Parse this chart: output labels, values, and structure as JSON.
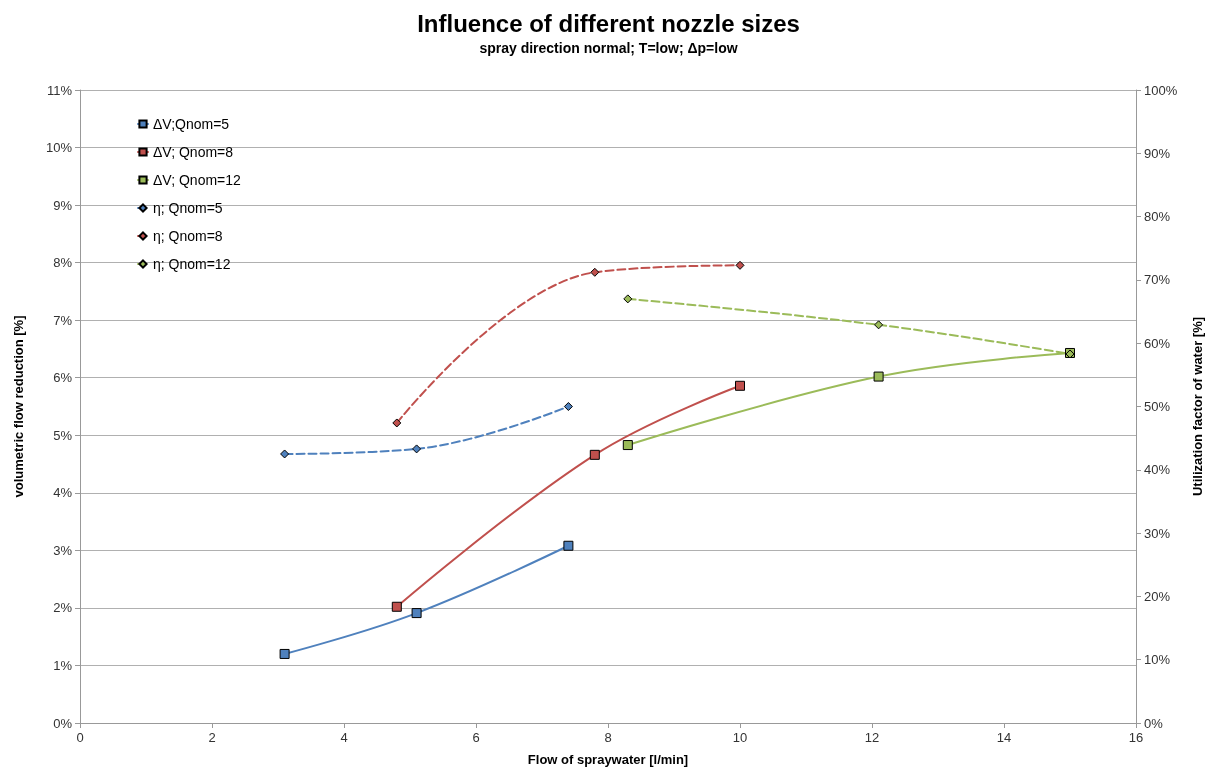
{
  "chart_data": {
    "type": "line",
    "title": "Influence of different nozzle sizes",
    "subtitle": "spray direction normal; T=low; Δp=low",
    "xlabel": "Flow of spraywater [l/min]",
    "ylabel": "volumetric flow reduction [%]",
    "y2label": "Utilization factor of water [%]",
    "xlim": [
      0,
      16
    ],
    "xticks": [
      0,
      2,
      4,
      6,
      8,
      10,
      12,
      14,
      16
    ],
    "ylim": [
      0,
      11
    ],
    "yticks": [
      {
        "value": 0,
        "label": "0%"
      },
      {
        "value": 1,
        "label": "1%"
      },
      {
        "value": 2,
        "label": "2%"
      },
      {
        "value": 3,
        "label": "3%"
      },
      {
        "value": 4,
        "label": "4%"
      },
      {
        "value": 5,
        "label": "5%"
      },
      {
        "value": 6,
        "label": "6%"
      },
      {
        "value": 7,
        "label": "7%"
      },
      {
        "value": 8,
        "label": "8%"
      },
      {
        "value": 9,
        "label": "9%"
      },
      {
        "value": 10,
        "label": "10%"
      },
      {
        "value": 11,
        "label": "11%"
      }
    ],
    "y2lim": [
      0,
      100
    ],
    "y2ticks": [
      {
        "value": 0,
        "label": "0%"
      },
      {
        "value": 10,
        "label": "10%"
      },
      {
        "value": 20,
        "label": "20%"
      },
      {
        "value": 30,
        "label": "30%"
      },
      {
        "value": 40,
        "label": "40%"
      },
      {
        "value": 50,
        "label": "50%"
      },
      {
        "value": 60,
        "label": "60%"
      },
      {
        "value": 70,
        "label": "70%"
      },
      {
        "value": 80,
        "label": "80%"
      },
      {
        "value": 90,
        "label": "90%"
      },
      {
        "value": 100,
        "label": "100%"
      }
    ],
    "grid": "y",
    "legend": "top left",
    "series": [
      {
        "name": "ΔV;Qnom=5",
        "color": "#4f81bd",
        "x": [
          3.1,
          5.1,
          7.4
        ],
        "values": [
          1.2,
          1.91,
          3.08
        ],
        "marker": "square",
        "line_style": "solid"
      },
      {
        "name": "ΔV; Qnom=8",
        "color": "#c0504d",
        "x": [
          4.8,
          7.8,
          10
        ],
        "values": [
          2.02,
          4.66,
          5.86
        ],
        "marker": "square",
        "line_style": "solid"
      },
      {
        "name": "ΔV; Qnom=12",
        "color": "#9bbb59",
        "x": [
          8.3,
          12.1,
          15
        ],
        "values": [
          4.83,
          6.02,
          6.43
        ],
        "marker": "square",
        "line_style": "solid"
      },
      {
        "name": "η; Qnom=5",
        "color": "#4f81bd",
        "x": [
          3.1,
          5.1,
          7.4
        ],
        "values": [
          42.5,
          43.3,
          50
        ],
        "marker": "diamond",
        "line_style": "dashed",
        "axis": "y2"
      },
      {
        "name": "η; Qnom=8",
        "color": "#c0504d",
        "x": [
          4.8,
          7.8,
          10
        ],
        "values": [
          47.4,
          71.2,
          72.3
        ],
        "marker": "diamond",
        "line_style": "dashed",
        "axis": "y2"
      },
      {
        "name": "η; Qnom=12",
        "color": "#9bbb59",
        "x": [
          8.3,
          12.1,
          15
        ],
        "values": [
          67,
          62.9,
          58.3
        ],
        "marker": "diamond",
        "line_style": "dashed",
        "axis": "y2"
      }
    ]
  }
}
